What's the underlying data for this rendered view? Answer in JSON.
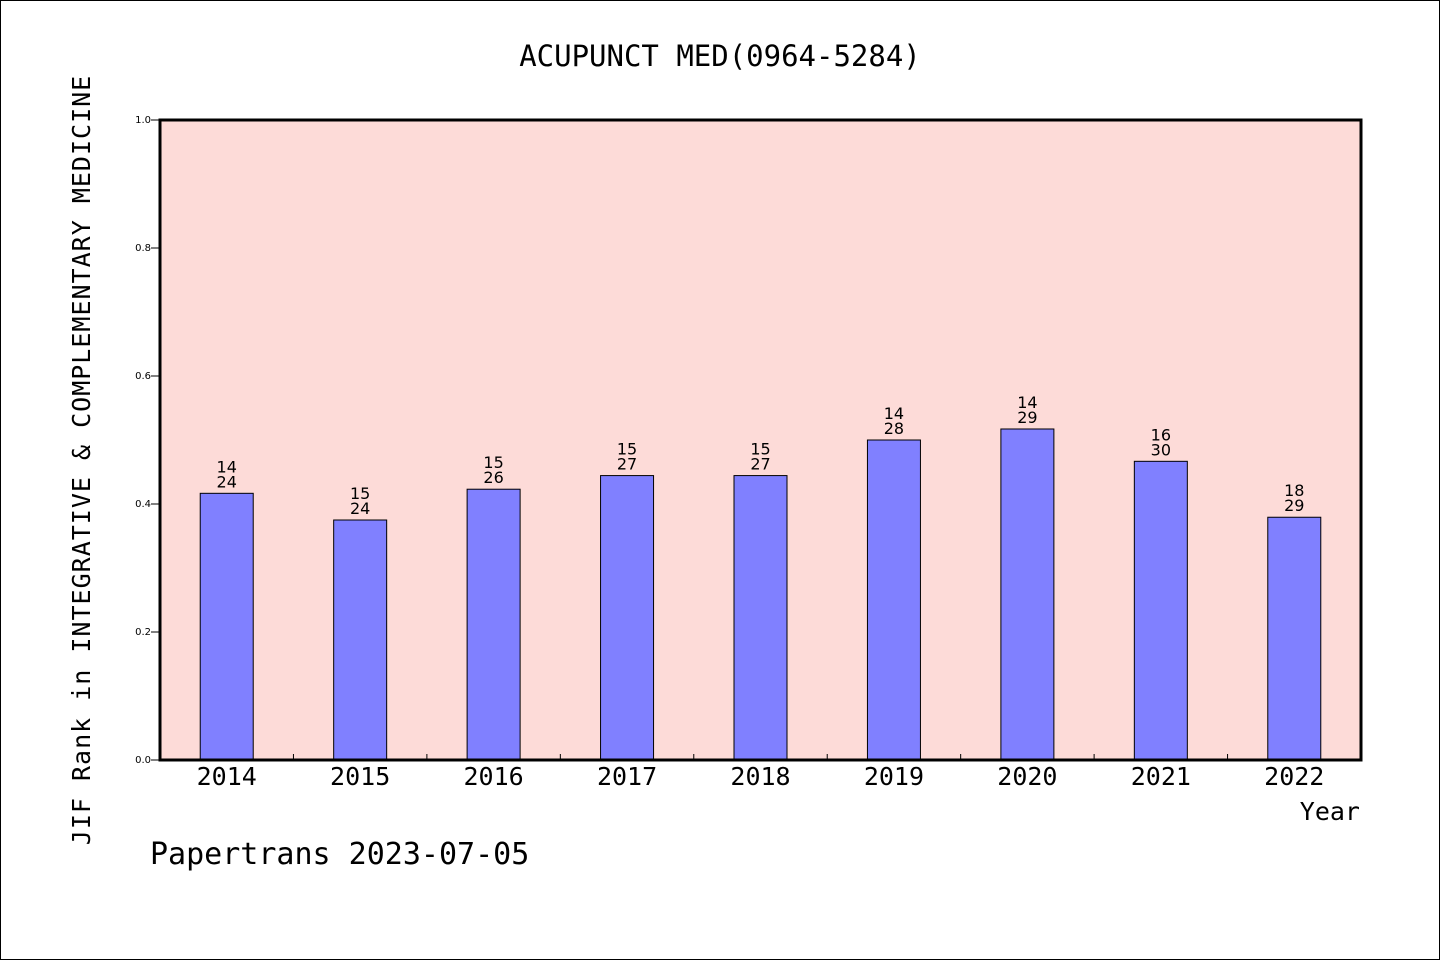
{
  "chart_data": {
    "type": "bar",
    "title": "ACUPUNCT MED(0964-5284)",
    "ylabel": "JIF Rank in INTEGRATIVE & COMPLEMENTARY MEDICINE",
    "xlabel": "Year",
    "ylim": [
      0,
      1.0
    ],
    "yticks": [
      "0.0",
      "0.2",
      "0.4",
      "0.6",
      "0.8",
      "1.0"
    ],
    "grid": false,
    "categories": [
      "2014",
      "2015",
      "2016",
      "2017",
      "2018",
      "2019",
      "2020",
      "2021",
      "2022"
    ],
    "values": [
      0.4167,
      0.375,
      0.4231,
      0.4444,
      0.4444,
      0.5,
      0.5172,
      0.4667,
      0.3793
    ],
    "rank_labels": [
      {
        "rank": "14",
        "total": "24"
      },
      {
        "rank": "15",
        "total": "24"
      },
      {
        "rank": "15",
        "total": "26"
      },
      {
        "rank": "15",
        "total": "27"
      },
      {
        "rank": "15",
        "total": "27"
      },
      {
        "rank": "14",
        "total": "28"
      },
      {
        "rank": "14",
        "total": "29"
      },
      {
        "rank": "16",
        "total": "30"
      },
      {
        "rank": "18",
        "total": "29"
      }
    ],
    "colors": {
      "plot_bg": "#fddbd8",
      "bar": "#8080ff",
      "axis": "#000000"
    }
  },
  "footer": {
    "credit": "Papertrans 2023-07-05"
  }
}
